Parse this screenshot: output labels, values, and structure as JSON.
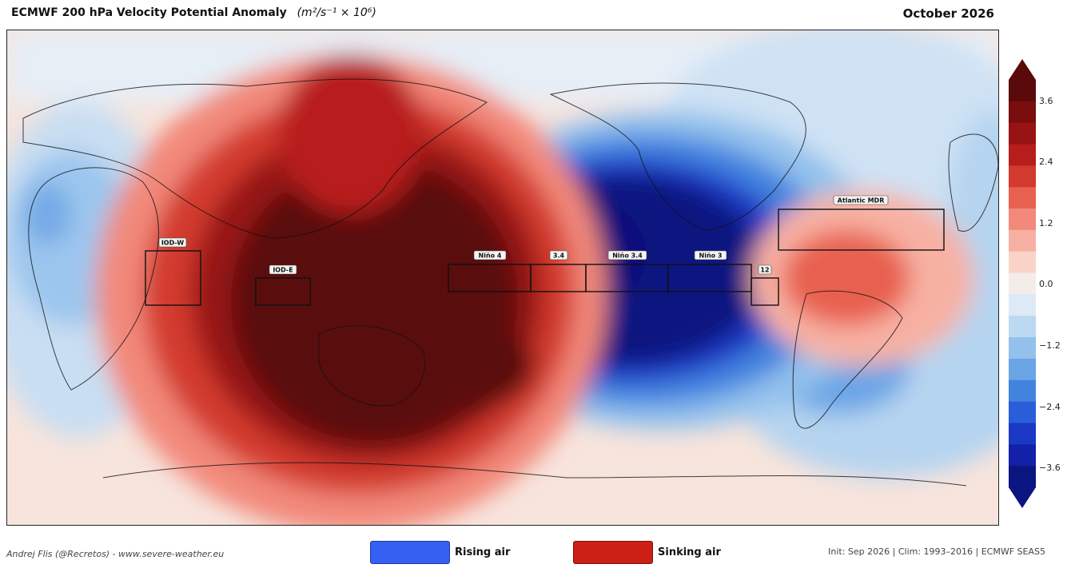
{
  "header": {
    "title": "ECMWF 200 hPa Velocity Potential Anomaly",
    "units": "(m²/s⁻¹ × 10⁶)",
    "date": "October 2026"
  },
  "colorbar": {
    "ticks": [
      "3.6",
      "2.4",
      "1.2",
      "0.0",
      "−1.2",
      "−2.4",
      "−3.6"
    ],
    "colors": [
      "#5a0a0a",
      "#7a0d0d",
      "#981414",
      "#b81d1d",
      "#d33a2e",
      "#e8614f",
      "#f2897a",
      "#f7b1a3",
      "#f9d3c8",
      "#f3ece9",
      "#dde9f6",
      "#bcd9f2",
      "#93c1ec",
      "#6aa5e6",
      "#4383e0",
      "#2a5ed8",
      "#1a38c4",
      "#1320a8",
      "#0b1580"
    ]
  },
  "regions": [
    {
      "label": "IOD-W"
    },
    {
      "label": "IOD-E"
    },
    {
      "label": "Niño 4"
    },
    {
      "label": "3.4"
    },
    {
      "label": "Niño 3.4"
    },
    {
      "label": "Niño 3"
    },
    {
      "label": "12"
    },
    {
      "label": "Atlantic MDR"
    }
  ],
  "legend": {
    "rising_label": "Rising air",
    "rising_color": "#3660f2",
    "sinking_label": "Sinking air",
    "sinking_color": "#cc1f15"
  },
  "footer": {
    "credit": "Andrej Flis (@Recretos) - www.severe-weather.eu",
    "info": "Init: Sep 2026  |  Clim: 1993–2016  |  ECMWF SEAS5"
  }
}
